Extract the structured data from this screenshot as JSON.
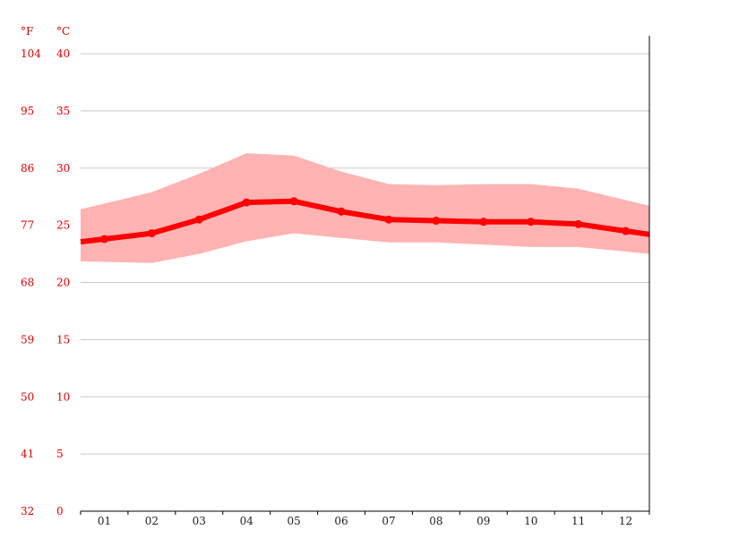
{
  "chart_data": {
    "type": "area",
    "units": {
      "fahrenheit": "°F",
      "celsius": "°C"
    },
    "categories": [
      "01",
      "02",
      "03",
      "04",
      "05",
      "06",
      "07",
      "08",
      "09",
      "10",
      "11",
      "12"
    ],
    "y_ticks_celsius": [
      "40",
      "35",
      "30",
      "25",
      "20",
      "15",
      "10",
      "5",
      "0"
    ],
    "y_ticks_fahrenheit": [
      "104",
      "95",
      "86",
      "77",
      "68",
      "59",
      "50",
      "41",
      "32"
    ],
    "ylim": [
      0,
      40
    ],
    "grid": true,
    "series": [
      {
        "role": "mean",
        "color": "#ff0000",
        "values": [
          23.8,
          24.3,
          25.5,
          27.0,
          27.1,
          26.2,
          25.5,
          25.4,
          25.3,
          25.3,
          25.1,
          24.5
        ]
      },
      {
        "role": "max",
        "color": "#ffb3b3",
        "values": [
          26.9,
          27.9,
          29.5,
          31.3,
          31.1,
          29.7,
          28.6,
          28.5,
          28.6,
          28.6,
          28.2,
          27.2
        ]
      },
      {
        "role": "min",
        "color": "#ffb3b3",
        "values": [
          21.8,
          21.7,
          22.5,
          23.6,
          24.3,
          23.9,
          23.5,
          23.5,
          23.3,
          23.1,
          23.1,
          22.7
        ]
      }
    ]
  }
}
